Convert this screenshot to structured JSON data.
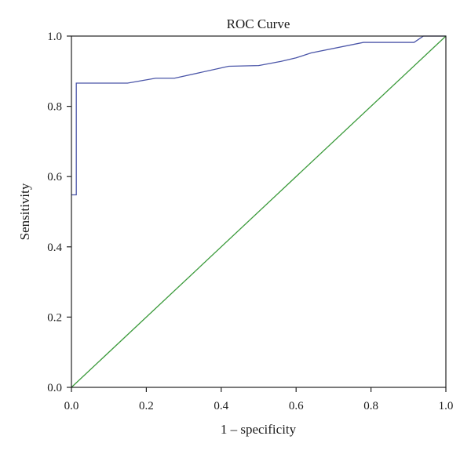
{
  "chart_data": {
    "type": "line",
    "title": "ROC Curve",
    "xlabel": "1 – specificity",
    "ylabel": "Sensitivity",
    "xlim": [
      0.0,
      1.0
    ],
    "ylim": [
      0.0,
      1.0
    ],
    "x_ticks": [
      "0.0",
      "0.2",
      "0.4",
      "0.6",
      "0.8",
      "1.0"
    ],
    "y_ticks": [
      "0.0",
      "0.2",
      "0.4",
      "0.6",
      "0.8",
      "1.0"
    ],
    "grid": false,
    "series": [
      {
        "color": "#4a55a8",
        "x": [
          0.0,
          0.013,
          0.013,
          0.15,
          0.225,
          0.275,
          0.42,
          0.5,
          0.56,
          0.6,
          0.64,
          0.78,
          0.915,
          0.94,
          1.0
        ],
        "y": [
          0.548,
          0.548,
          0.866,
          0.866,
          0.88,
          0.88,
          0.914,
          0.916,
          0.928,
          0.938,
          0.952,
          0.982,
          0.982,
          1.0,
          1.0
        ]
      },
      {
        "color": "#3a9a3a",
        "x": [
          0.0,
          1.0
        ],
        "y": [
          0.0,
          1.0
        ]
      }
    ]
  }
}
